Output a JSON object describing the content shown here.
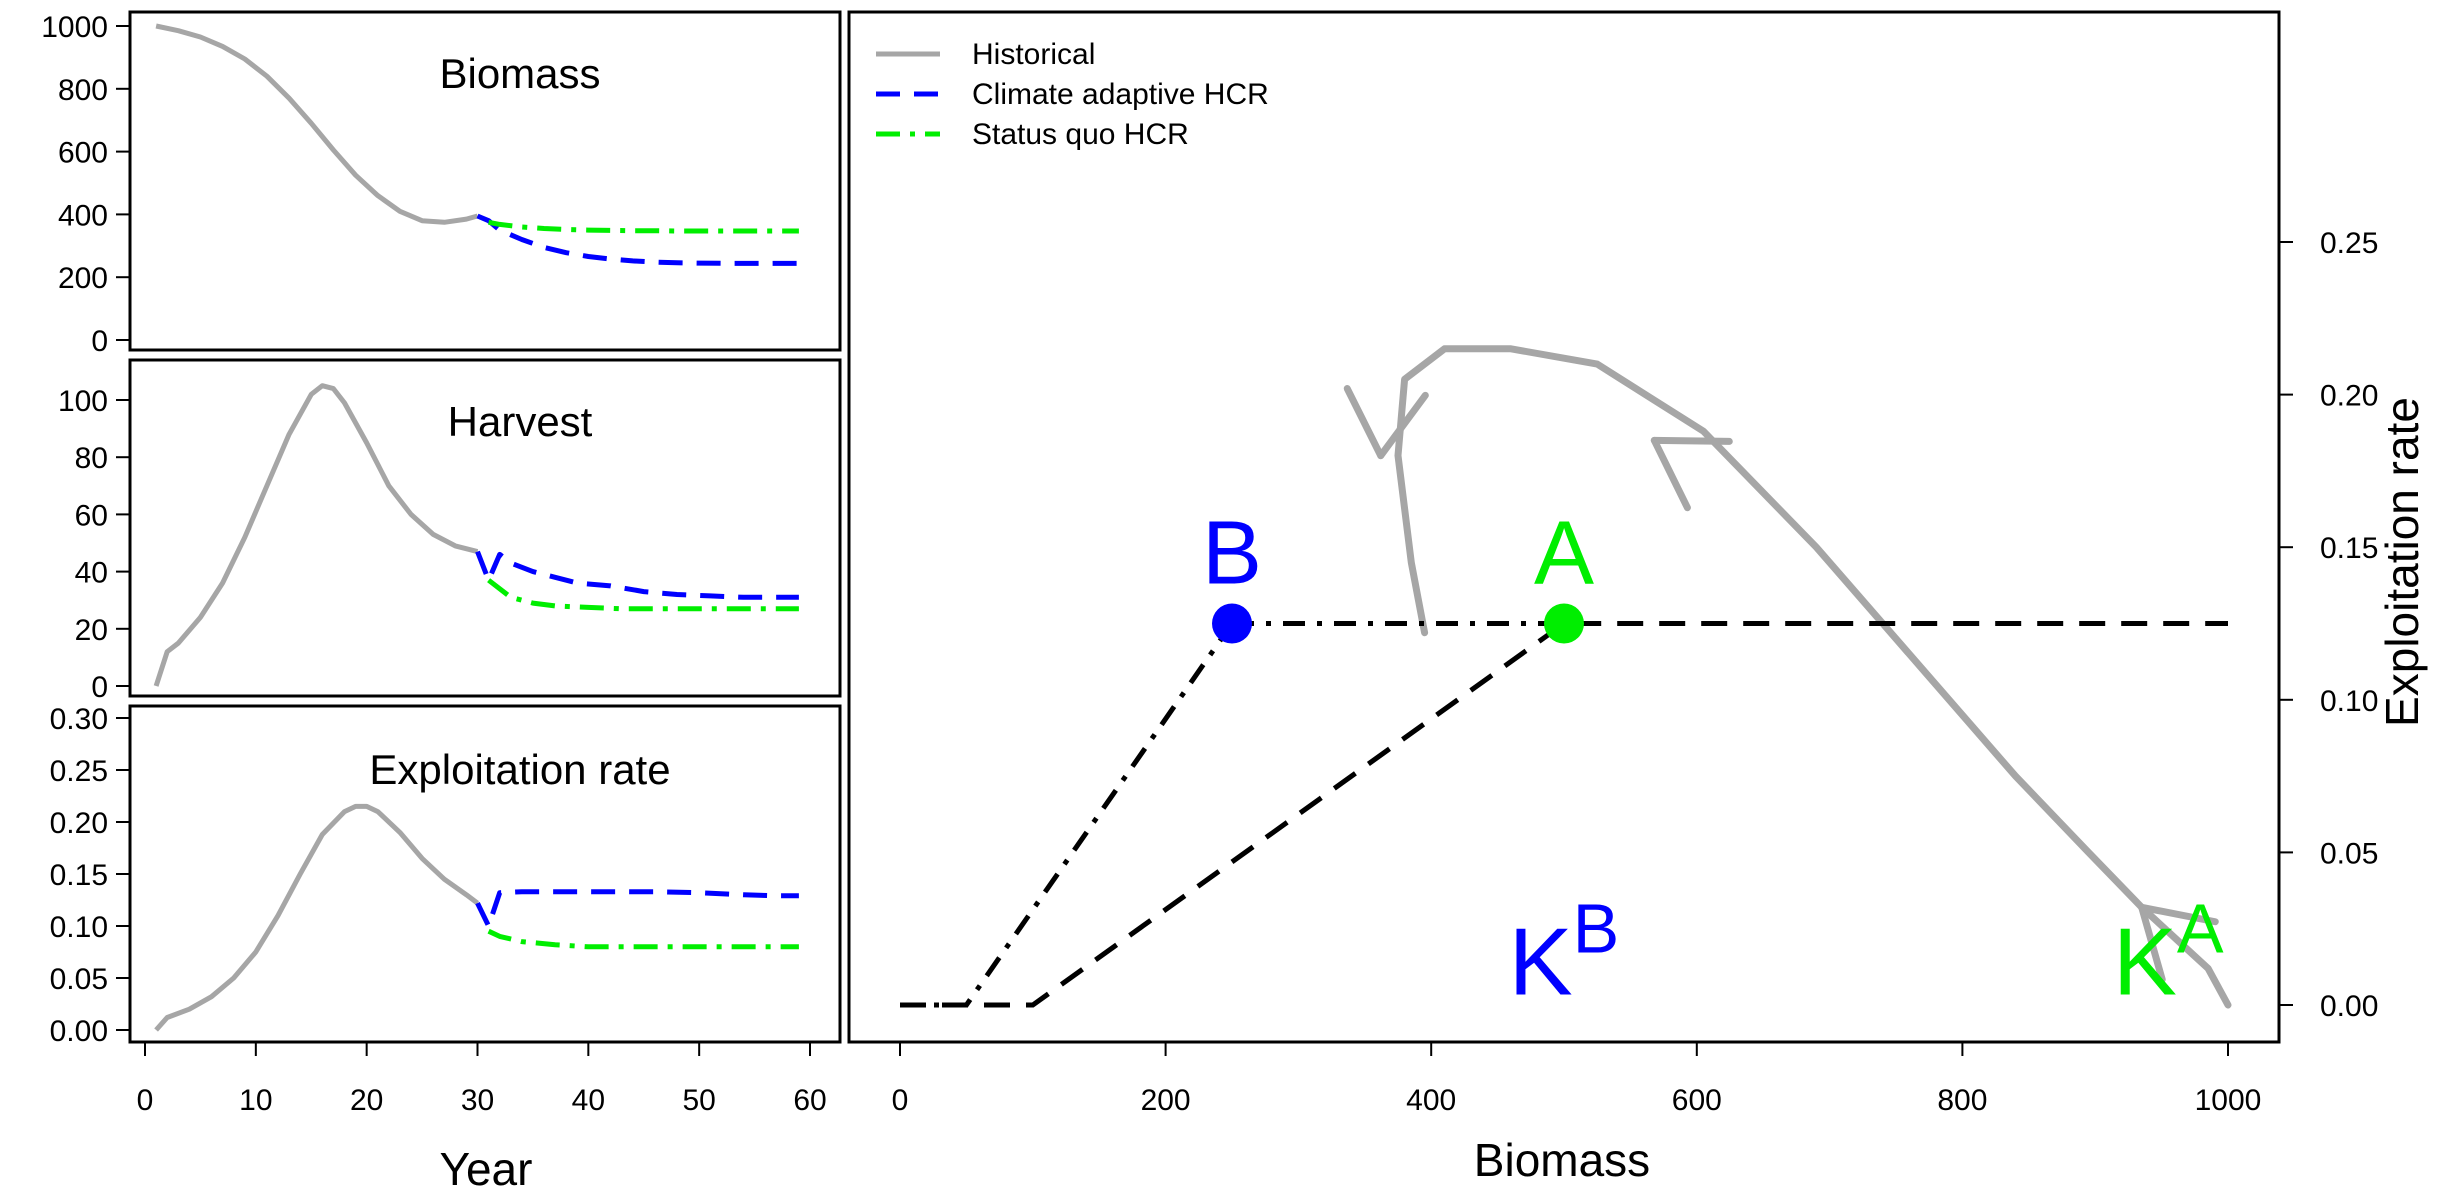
{
  "colors": {
    "historical": "#a6a6a6",
    "adaptive": "#0000ff",
    "status_quo": "#00ee00",
    "hcr": "#000000"
  },
  "legend": [
    {
      "label": "Historical",
      "style": "solid",
      "color": "#a6a6a6"
    },
    {
      "label": "Climate adaptive HCR",
      "style": "dashed",
      "color": "#0000ff"
    },
    {
      "label": "Status quo HCR",
      "style": "dashdot",
      "color": "#00ee00"
    }
  ],
  "xlabel_left": "Year",
  "chart_data": [
    {
      "type": "line",
      "title": "Biomass",
      "xlim": [
        0,
        60
      ],
      "ylim": [
        0,
        1000
      ],
      "xticks": [
        "0",
        "10",
        "20",
        "30",
        "40",
        "50",
        "60"
      ],
      "yticks": [
        "0",
        "200",
        "400",
        "600",
        "800",
        "1000"
      ],
      "series": [
        {
          "name": "Historical",
          "x": [
            1,
            3,
            5,
            7,
            9,
            11,
            13,
            15,
            17,
            19,
            21,
            23,
            25,
            27,
            29,
            30
          ],
          "y": [
            1000,
            985,
            965,
            935,
            895,
            840,
            770,
            690,
            605,
            525,
            460,
            410,
            380,
            375,
            385,
            395
          ]
        },
        {
          "name": "Climate adaptive HCR",
          "x": [
            30,
            31,
            32,
            34,
            36,
            38,
            40,
            42,
            44,
            46,
            48,
            50,
            53,
            56,
            59
          ],
          "y": [
            395,
            380,
            350,
            320,
            295,
            278,
            266,
            258,
            252,
            248,
            246,
            245,
            244,
            244,
            244
          ]
        },
        {
          "name": "Status quo HCR",
          "x": [
            31,
            32,
            34,
            36,
            38,
            40,
            42,
            44,
            46,
            48,
            50,
            53,
            56,
            59
          ],
          "y": [
            375,
            368,
            360,
            355,
            352,
            350,
            349,
            348,
            348,
            347,
            347,
            347,
            347,
            347
          ]
        }
      ]
    },
    {
      "type": "line",
      "title": "Harvest",
      "xlim": [
        0,
        60
      ],
      "ylim": [
        0,
        100
      ],
      "xticks": [
        "0",
        "10",
        "20",
        "30",
        "40",
        "50",
        "60"
      ],
      "yticks": [
        "0",
        "20",
        "40",
        "60",
        "80",
        "100"
      ],
      "series": [
        {
          "name": "Historical",
          "x": [
            1,
            2,
            3,
            5,
            7,
            9,
            11,
            13,
            15,
            16,
            17,
            18,
            20,
            22,
            24,
            26,
            28,
            30
          ],
          "y": [
            0,
            12,
            15,
            24,
            36,
            52,
            70,
            88,
            102,
            105,
            104,
            99,
            85,
            70,
            60,
            53,
            49,
            47
          ]
        },
        {
          "name": "Climate adaptive HCR",
          "x": [
            30,
            31,
            32,
            33,
            35,
            37,
            39,
            42,
            45,
            48,
            51,
            54,
            57,
            59
          ],
          "y": [
            47,
            37,
            46,
            43,
            40,
            38,
            36,
            35,
            33,
            32,
            31.5,
            31,
            31,
            31
          ]
        },
        {
          "name": "Status quo HCR",
          "x": [
            31,
            33,
            35,
            37,
            40,
            43,
            46,
            50,
            54,
            59
          ],
          "y": [
            37,
            31,
            29,
            28,
            27.5,
            27,
            27,
            27,
            27,
            27
          ]
        }
      ]
    },
    {
      "type": "line",
      "title": "Exploitation rate",
      "xlim": [
        0,
        60
      ],
      "ylim": [
        0,
        0.3
      ],
      "xticks": [
        "0",
        "10",
        "20",
        "30",
        "40",
        "50",
        "60"
      ],
      "yticks": [
        "0.00",
        "0.05",
        "0.10",
        "0.15",
        "0.20",
        "0.25",
        "0.30"
      ],
      "series": [
        {
          "name": "Historical",
          "x": [
            1,
            2,
            4,
            6,
            8,
            10,
            12,
            14,
            16,
            18,
            19,
            20,
            21,
            23,
            25,
            27,
            29,
            30
          ],
          "y": [
            0,
            0.012,
            0.02,
            0.032,
            0.05,
            0.075,
            0.11,
            0.15,
            0.188,
            0.21,
            0.215,
            0.215,
            0.21,
            0.19,
            0.165,
            0.145,
            0.13,
            0.122
          ]
        },
        {
          "name": "Climate adaptive HCR",
          "x": [
            30,
            31,
            32,
            34,
            37,
            40,
            43,
            46,
            50,
            54,
            57,
            59
          ],
          "y": [
            0.122,
            0.1,
            0.132,
            0.133,
            0.133,
            0.133,
            0.133,
            0.133,
            0.132,
            0.13,
            0.129,
            0.129
          ]
        },
        {
          "name": "Status quo HCR",
          "x": [
            31,
            32,
            34,
            37,
            40,
            43,
            46,
            50,
            54,
            59
          ],
          "y": [
            0.095,
            0.09,
            0.085,
            0.082,
            0.08,
            0.08,
            0.08,
            0.08,
            0.08,
            0.08
          ]
        }
      ]
    },
    {
      "type": "line",
      "title": "",
      "xlabel": "Biomass",
      "ylabel": "Exploitation rate",
      "xlim": [
        0,
        1000
      ],
      "ylim": [
        0,
        0.25
      ],
      "xticks": [
        "0",
        "200",
        "400",
        "600",
        "800",
        "1000"
      ],
      "yticks": [
        "0.00",
        "0.05",
        "0.10",
        "0.15",
        "0.20",
        "0.25"
      ],
      "y_axis_side": "right",
      "hcr_a": {
        "x": [
          0,
          100,
          500,
          1000
        ],
        "y": [
          0,
          0,
          0.125,
          0.125
        ]
      },
      "hcr_b": {
        "x": [
          0,
          50,
          250,
          500
        ],
        "y": [
          0,
          0,
          0.125,
          0.125
        ]
      },
      "point_A": {
        "x": 500,
        "y": 0.125,
        "label": "A"
      },
      "point_B": {
        "x": 250,
        "y": 0.125,
        "label": "B"
      },
      "label_KB": {
        "x": 500,
        "y": 0.0035,
        "base": "K",
        "sup": "B"
      },
      "label_KA": {
        "x": 955,
        "y": 0.0035,
        "base": "K",
        "sup": "A"
      },
      "historical_trajectory": {
        "x": [
          1000,
          985,
          965,
          935,
          895,
          840,
          770,
          690,
          605,
          525,
          460,
          410,
          380,
          375,
          385,
          395
        ],
        "y": [
          0,
          0.012,
          0.02,
          0.032,
          0.05,
          0.075,
          0.11,
          0.15,
          0.188,
          0.21,
          0.215,
          0.215,
          0.205,
          0.18,
          0.145,
          0.122
        ]
      },
      "arrowheads": [
        {
          "x": 935,
          "y": 0.032
        },
        {
          "x": 568,
          "y": 0.185
        },
        {
          "x": 362,
          "y": 0.18
        }
      ]
    }
  ]
}
